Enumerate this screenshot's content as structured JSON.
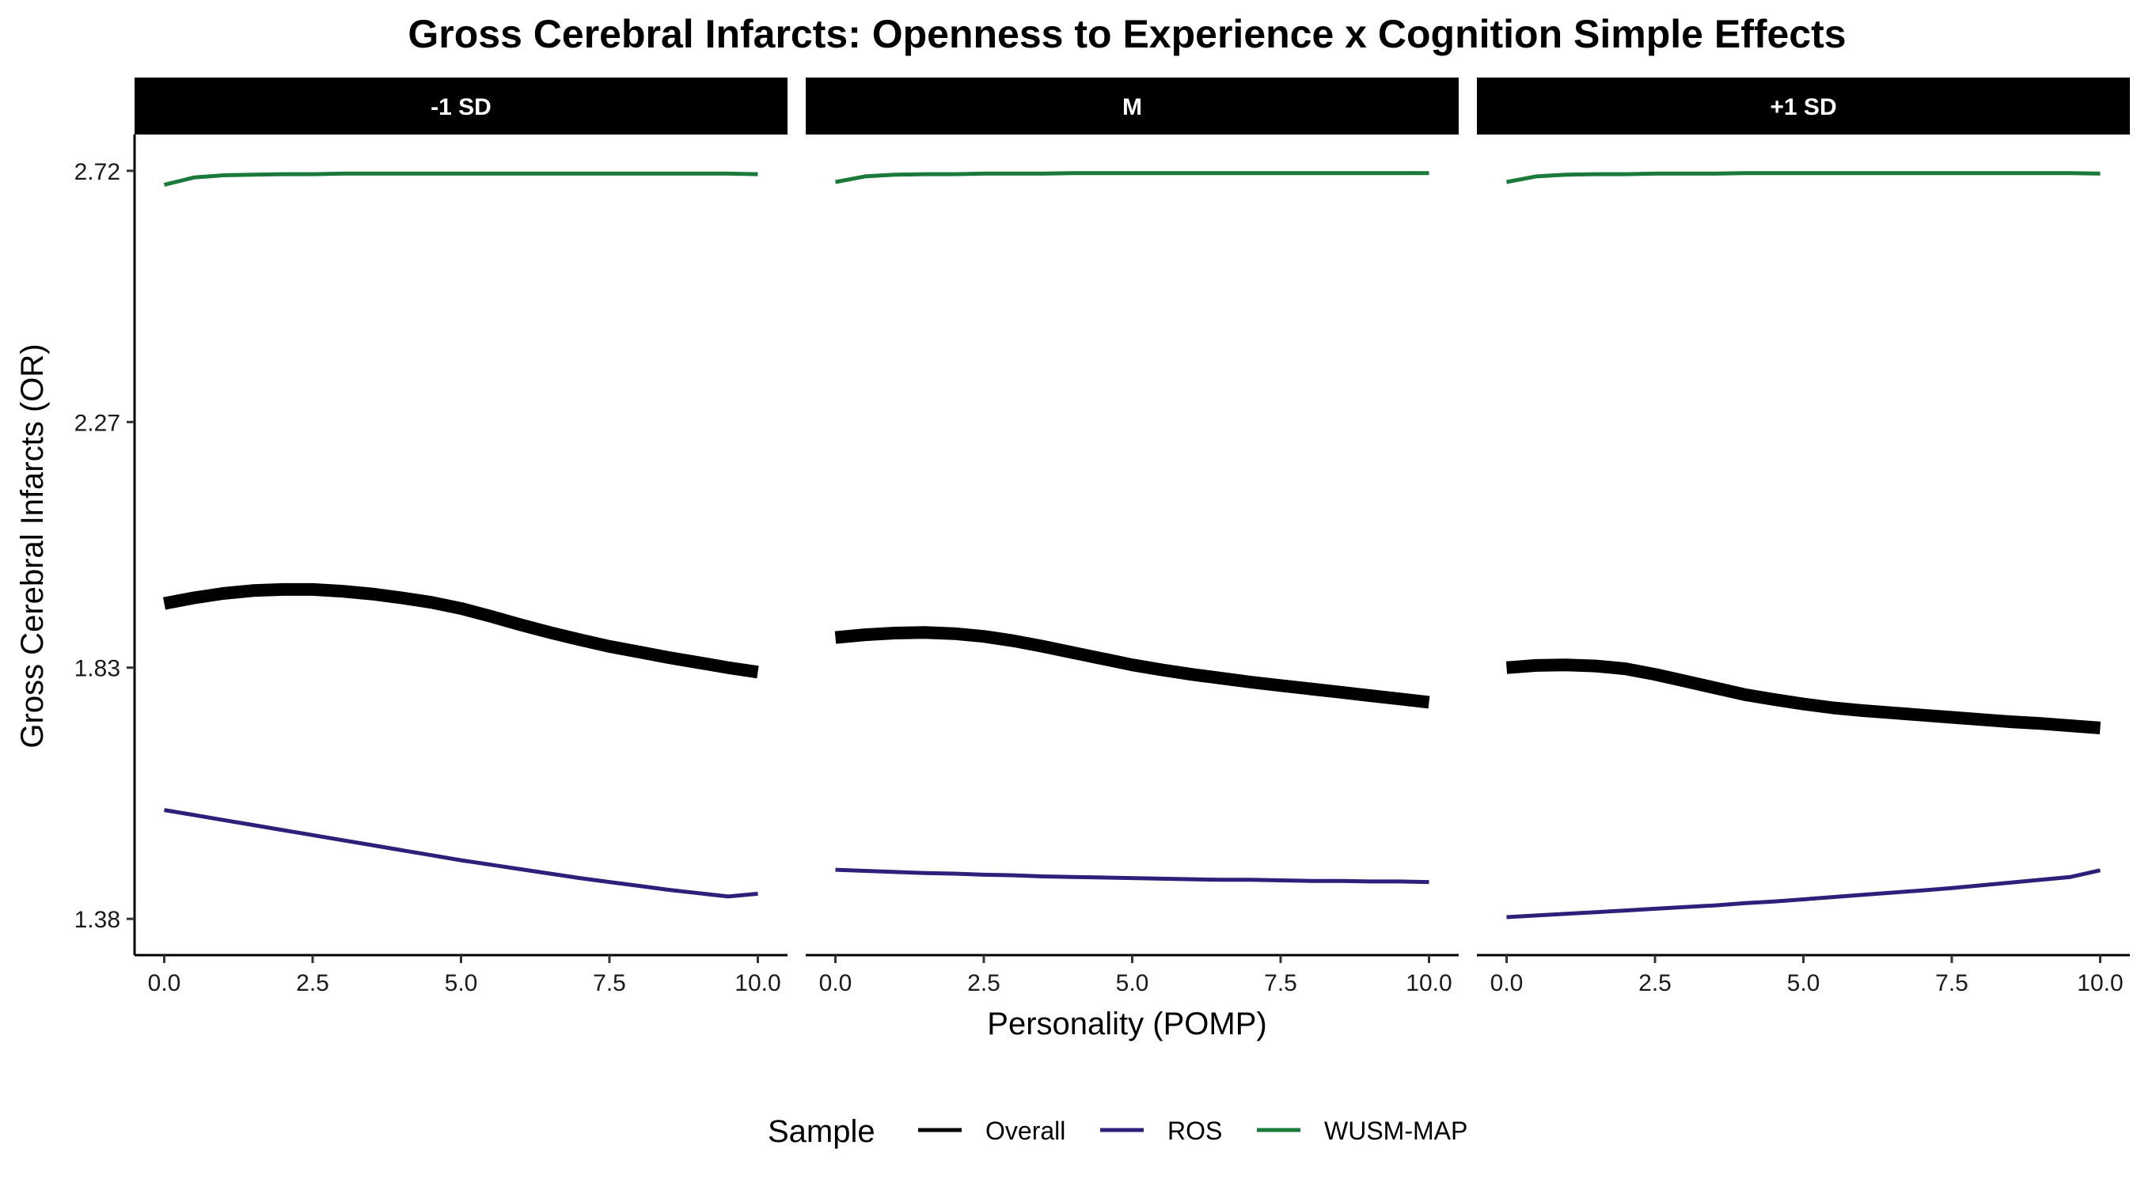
{
  "chart_data": {
    "type": "line",
    "title": "Gross Cerebral Infarcts: Openness to Experience x Cognition Simple Effects",
    "xlabel": "Personality (POMP)",
    "ylabel": "Gross Cerebral Infarcts (OR)",
    "xlim": [
      -0.5,
      10.5
    ],
    "ylim": [
      1.315,
      2.785
    ],
    "x_ticks": [
      0,
      2.5,
      5,
      7.5,
      10
    ],
    "x_tick_labels": [
      "0.0",
      "2.5",
      "5.0",
      "7.5",
      "10.0"
    ],
    "y_ticks": [
      1.38,
      1.83,
      2.27,
      2.72
    ],
    "y_tick_labels": [
      "1.38",
      "1.83",
      "2.27",
      "2.72"
    ],
    "grid": false,
    "legend": {
      "title": "Sample",
      "placement": "bottom",
      "entries": [
        "Overall",
        "ROS",
        "WUSM-MAP"
      ]
    },
    "series_styles": [
      {
        "name": "Overall",
        "color": "#000000",
        "weight": "thick"
      },
      {
        "name": "ROS",
        "color": "#2d1f7a",
        "weight": "thin"
      },
      {
        "name": "WUSM-MAP",
        "color": "#1a7a3a",
        "weight": "thin"
      }
    ],
    "x": [
      0,
      0.5,
      1,
      1.5,
      2,
      2.5,
      3,
      3.5,
      4,
      4.5,
      5,
      5.5,
      6,
      6.5,
      7,
      7.5,
      8,
      8.5,
      9,
      9.5,
      10
    ],
    "panels": [
      {
        "strip": "-1 SD",
        "series": [
          {
            "name": "Overall",
            "values": [
              1.945,
              1.955,
              1.963,
              1.968,
              1.97,
              1.97,
              1.967,
              1.962,
              1.955,
              1.947,
              1.936,
              1.922,
              1.907,
              1.893,
              1.88,
              1.868,
              1.858,
              1.848,
              1.839,
              1.83,
              1.822
            ]
          },
          {
            "name": "ROS",
            "values": [
              1.575,
              1.566,
              1.557,
              1.548,
              1.539,
              1.53,
              1.521,
              1.512,
              1.503,
              1.494,
              1.485,
              1.477,
              1.469,
              1.461,
              1.453,
              1.446,
              1.439,
              1.432,
              1.426,
              1.42,
              1.425
            ]
          },
          {
            "name": "WUSM-MAP",
            "values": [
              2.695,
              2.708,
              2.712,
              2.713,
              2.714,
              2.714,
              2.715,
              2.715,
              2.715,
              2.715,
              2.715,
              2.715,
              2.715,
              2.715,
              2.715,
              2.715,
              2.715,
              2.715,
              2.715,
              2.715,
              2.714
            ]
          }
        ]
      },
      {
        "strip": "M",
        "series": [
          {
            "name": "Overall",
            "values": [
              1.884,
              1.889,
              1.892,
              1.893,
              1.891,
              1.886,
              1.878,
              1.868,
              1.857,
              1.846,
              1.835,
              1.826,
              1.818,
              1.811,
              1.804,
              1.798,
              1.792,
              1.786,
              1.78,
              1.774,
              1.768
            ]
          },
          {
            "name": "ROS",
            "values": [
              1.468,
              1.466,
              1.464,
              1.462,
              1.461,
              1.459,
              1.458,
              1.456,
              1.455,
              1.454,
              1.453,
              1.452,
              1.451,
              1.45,
              1.45,
              1.449,
              1.448,
              1.448,
              1.447,
              1.447,
              1.446
            ]
          },
          {
            "name": "WUSM-MAP",
            "values": [
              2.7,
              2.71,
              2.713,
              2.714,
              2.714,
              2.715,
              2.715,
              2.715,
              2.716,
              2.716,
              2.716,
              2.716,
              2.716,
              2.716,
              2.716,
              2.716,
              2.716,
              2.716,
              2.716,
              2.716,
              2.716
            ]
          }
        ]
      },
      {
        "strip": "+1 SD",
        "series": [
          {
            "name": "Overall",
            "values": [
              1.83,
              1.834,
              1.835,
              1.833,
              1.828,
              1.818,
              1.806,
              1.794,
              1.782,
              1.773,
              1.765,
              1.758,
              1.753,
              1.749,
              1.745,
              1.741,
              1.737,
              1.733,
              1.73,
              1.726,
              1.722
            ]
          },
          {
            "name": "ROS",
            "values": [
              1.383,
              1.386,
              1.389,
              1.392,
              1.395,
              1.398,
              1.401,
              1.404,
              1.408,
              1.411,
              1.415,
              1.419,
              1.423,
              1.427,
              1.431,
              1.435,
              1.44,
              1.445,
              1.45,
              1.455,
              1.467
            ]
          },
          {
            "name": "WUSM-MAP",
            "values": [
              2.7,
              2.71,
              2.713,
              2.714,
              2.714,
              2.715,
              2.715,
              2.715,
              2.716,
              2.716,
              2.716,
              2.716,
              2.716,
              2.716,
              2.716,
              2.716,
              2.716,
              2.716,
              2.716,
              2.716,
              2.715
            ]
          }
        ]
      }
    ]
  }
}
